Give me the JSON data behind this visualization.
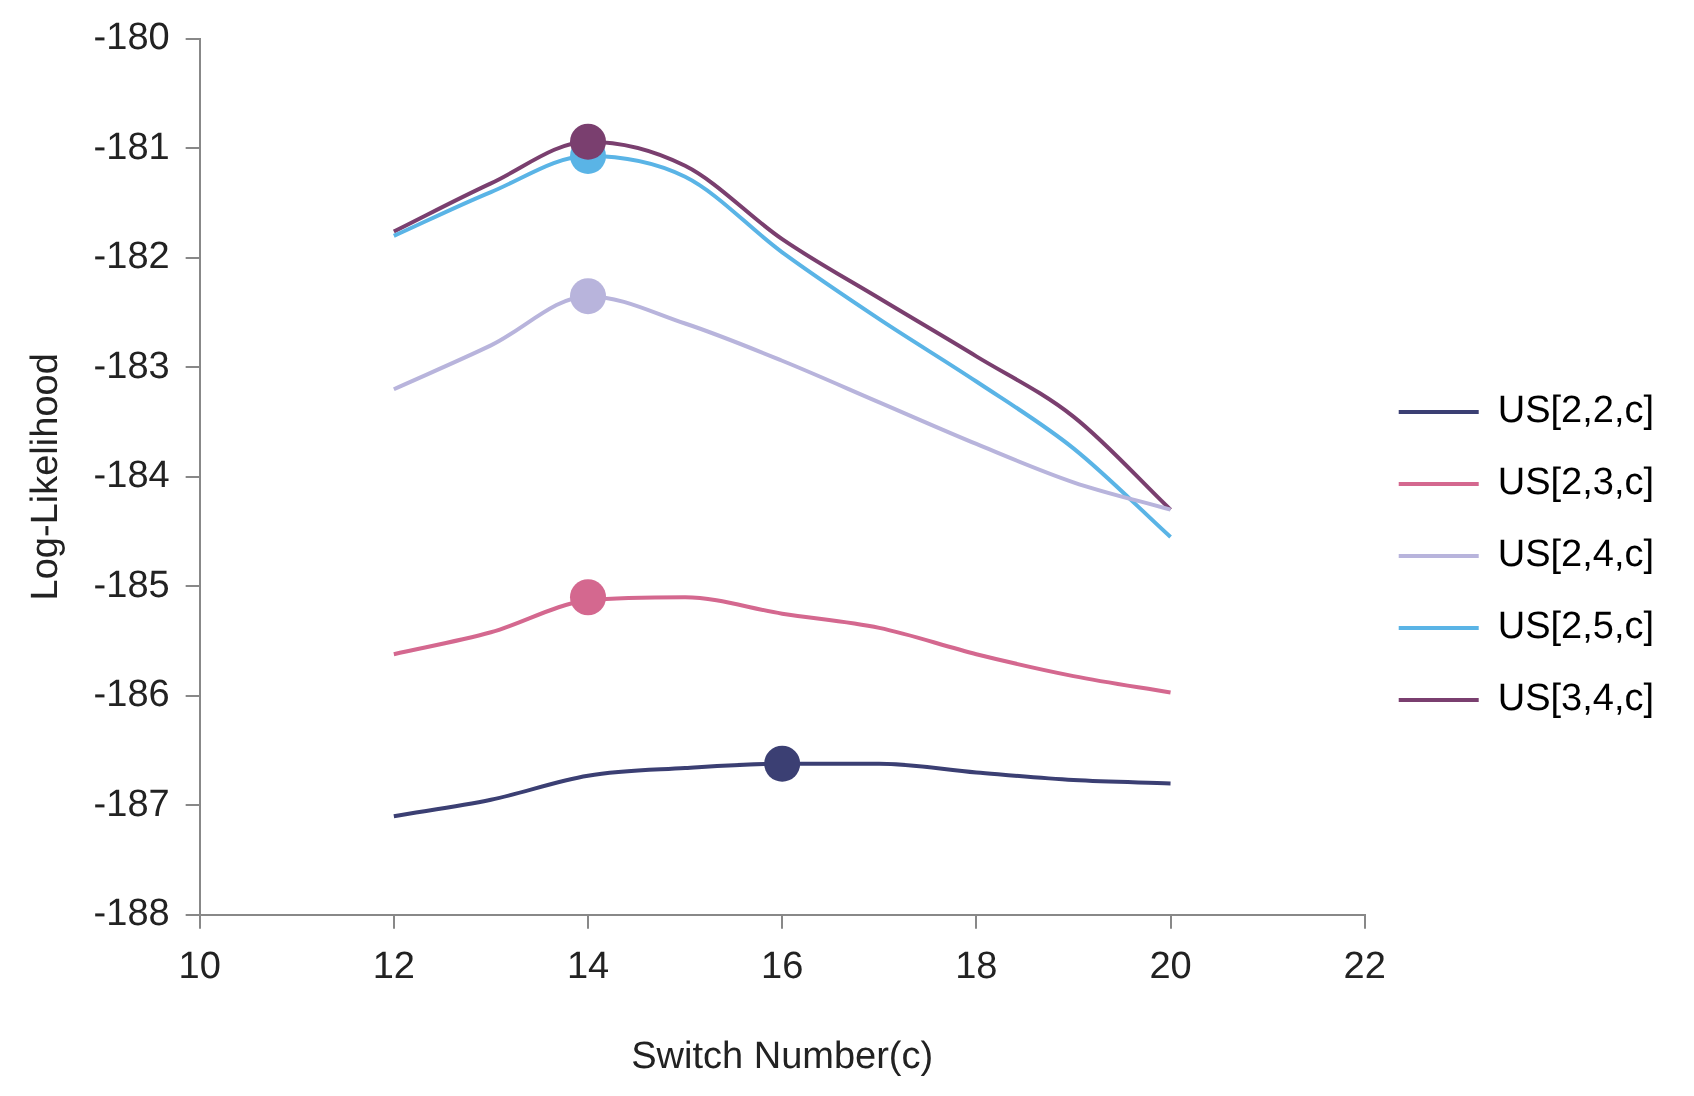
{
  "chart_data": {
    "type": "line",
    "xlabel": "Switch Number(c)",
    "ylabel": "Log-Likelihood",
    "xlim": [
      10,
      22
    ],
    "xticks": [
      10,
      12,
      14,
      16,
      18,
      20,
      22
    ],
    "ylim": [
      -188,
      -180
    ],
    "yticks": [
      -188,
      -187,
      -186,
      -185,
      -184,
      -183,
      -182,
      -181,
      -180
    ],
    "grid": false,
    "legend": "right",
    "marker": "none",
    "line_style": "solid",
    "x": [
      12,
      13,
      14,
      15,
      16,
      17,
      18,
      19,
      20
    ],
    "series": [
      {
        "name": "US[2,2,c]",
        "color": "#3b3f73",
        "values": [
          -187.1,
          -186.95,
          -186.73,
          -186.66,
          -186.62,
          -186.62,
          -186.7,
          -186.77,
          -186.8
        ]
      },
      {
        "name": "US[2,3,c]",
        "color": "#d4688f",
        "values": [
          -185.62,
          -185.42,
          -185.13,
          -185.1,
          -185.25,
          -185.38,
          -185.62,
          -185.82,
          -185.97
        ]
      },
      {
        "name": "US[2,4,c]",
        "color": "#b8b4dc",
        "values": [
          -183.2,
          -182.8,
          -182.35,
          -182.6,
          -182.94,
          -183.32,
          -183.7,
          -184.05,
          -184.3
        ]
      },
      {
        "name": "US[2,5,c]",
        "color": "#5ab4e6",
        "values": [
          -181.8,
          -181.4,
          -181.07,
          -181.26,
          -181.95,
          -182.56,
          -183.13,
          -183.74,
          -184.55
        ]
      },
      {
        "name": "US[3,4,c]",
        "color": "#7a3f6f",
        "values": [
          -181.76,
          -181.32,
          -180.94,
          -181.16,
          -181.83,
          -182.37,
          -182.9,
          -183.45,
          -184.3
        ]
      },
      {
        "type": "scatter",
        "marker": "circle",
        "color": "#3b3f73",
        "values": [
          null,
          null,
          null,
          null,
          -186.62,
          null,
          null,
          null,
          null
        ]
      },
      {
        "type": "scatter",
        "marker": "circle",
        "color": "#d4688f",
        "values": [
          null,
          null,
          -185.1,
          null,
          null,
          null,
          null,
          null,
          null
        ]
      },
      {
        "type": "scatter",
        "marker": "circle",
        "color": "#b8b4dc",
        "values": [
          null,
          null,
          -182.35,
          null,
          null,
          null,
          null,
          null,
          null
        ]
      },
      {
        "type": "scatter",
        "marker": "circle",
        "color": "#5ab4e6",
        "values": [
          null,
          null,
          -181.07,
          null,
          null,
          null,
          null,
          null,
          null
        ]
      },
      {
        "type": "scatter",
        "marker": "circle",
        "color": "#7a3f6f",
        "values": [
          null,
          null,
          -180.94,
          null,
          null,
          null,
          null,
          null,
          null
        ]
      }
    ]
  }
}
